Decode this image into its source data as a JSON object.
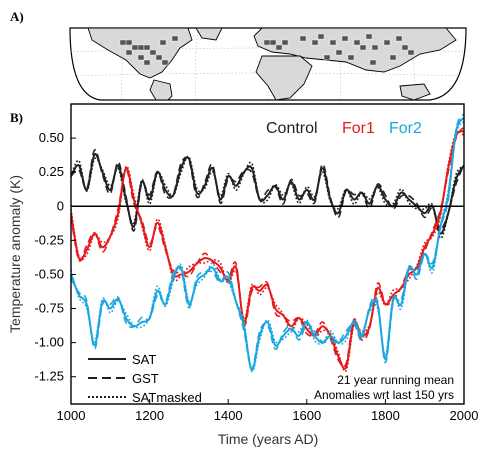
{
  "panel_a_label": "A)",
  "panel_b_label": "B)",
  "colors": {
    "control": "#222222",
    "for1": "#e41a1c",
    "for2": "#1aa7e0",
    "land": "#d9d9d9",
    "grid_cells": "#555555"
  },
  "legend_runs": [
    {
      "name": "Control",
      "color": "#222222"
    },
    {
      "name": "For1",
      "color": "#e41a1c"
    },
    {
      "name": "For2",
      "color": "#1aa7e0"
    }
  ],
  "legend_styles": [
    {
      "name": "SAT",
      "dash": "solid"
    },
    {
      "name": "GST",
      "dash": "dashed"
    },
    {
      "name": "SATmasked",
      "dash": "dotted"
    }
  ],
  "notes": [
    "21  year  running mean",
    "Anomalies wrt last 150 yrs"
  ],
  "chart_data": {
    "type": "line",
    "xlabel": "Time (years AD)",
    "ylabel": "Temperature anomaly (K)",
    "xlim": [
      1000,
      2000
    ],
    "ylim": [
      -1.45,
      0.75
    ],
    "xticks": [
      1000,
      1200,
      1400,
      1600,
      1800,
      2000
    ],
    "yticks": [
      0.5,
      0.25,
      0,
      -0.25,
      -0.5,
      -0.75,
      -1.0,
      -1.25
    ],
    "ytick_labels": [
      "0.50",
      "0.25",
      "0",
      "-0.25",
      "-0.50",
      "-0.75",
      "-1.00",
      "-1.25"
    ],
    "zero_line": 0,
    "grid": false,
    "series": [
      {
        "name": "Control",
        "color": "#222222",
        "x": [
          1000,
          1020,
          1040,
          1060,
          1080,
          1100,
          1120,
          1140,
          1160,
          1180,
          1200,
          1220,
          1240,
          1260,
          1280,
          1300,
          1320,
          1340,
          1360,
          1380,
          1400,
          1420,
          1440,
          1460,
          1480,
          1500,
          1520,
          1540,
          1560,
          1580,
          1600,
          1620,
          1640,
          1660,
          1680,
          1700,
          1720,
          1740,
          1760,
          1780,
          1800,
          1820,
          1840,
          1860,
          1880,
          1900,
          1920,
          1940,
          1960,
          1980,
          2000
        ],
        "y": [
          0.22,
          0.3,
          0.12,
          0.38,
          0.25,
          0.12,
          0.3,
          0.05,
          -0.15,
          0.18,
          0.05,
          0.25,
          0.12,
          0.08,
          0.28,
          0.35,
          0.1,
          0.15,
          0.28,
          0.05,
          0.22,
          0.15,
          0.25,
          0.28,
          0.05,
          0.08,
          0.15,
          0.05,
          0.18,
          0.05,
          0.12,
          0.05,
          0.28,
          0.05,
          -0.05,
          0.12,
          0.05,
          0.1,
          0.02,
          0.15,
          0.05,
          0.0,
          0.1,
          0.05,
          0.0,
          -0.05,
          0.0,
          -0.2,
          -0.05,
          0.2,
          0.3
        ]
      },
      {
        "name": "For1",
        "color": "#e41a1c",
        "x": [
          1000,
          1020,
          1040,
          1060,
          1080,
          1100,
          1120,
          1140,
          1160,
          1180,
          1200,
          1220,
          1240,
          1260,
          1280,
          1300,
          1320,
          1340,
          1360,
          1380,
          1400,
          1420,
          1440,
          1460,
          1480,
          1500,
          1520,
          1540,
          1560,
          1580,
          1600,
          1620,
          1640,
          1660,
          1680,
          1700,
          1720,
          1740,
          1760,
          1780,
          1800,
          1820,
          1840,
          1860,
          1880,
          1900,
          1920,
          1940,
          1960,
          1980,
          2000
        ],
        "y": [
          -0.05,
          -0.38,
          -0.32,
          -0.2,
          -0.3,
          -0.22,
          -0.05,
          0.28,
          0.05,
          -0.12,
          -0.3,
          -0.12,
          -0.3,
          -0.5,
          -0.5,
          -0.48,
          -0.42,
          -0.38,
          -0.4,
          -0.45,
          -0.55,
          -0.45,
          -0.85,
          -0.6,
          -0.62,
          -0.58,
          -0.75,
          -0.8,
          -0.88,
          -0.82,
          -0.9,
          -0.95,
          -0.88,
          -0.95,
          -1.1,
          -1.18,
          -0.85,
          -0.95,
          -0.88,
          -0.6,
          -0.72,
          -0.65,
          -0.6,
          -0.5,
          -0.45,
          -0.3,
          -0.2,
          -0.05,
          0.28,
          0.52,
          0.55
        ]
      },
      {
        "name": "For2",
        "color": "#1aa7e0",
        "x": [
          1000,
          1020,
          1040,
          1060,
          1080,
          1100,
          1120,
          1140,
          1160,
          1180,
          1200,
          1220,
          1240,
          1260,
          1280,
          1300,
          1320,
          1340,
          1360,
          1380,
          1400,
          1420,
          1440,
          1460,
          1480,
          1500,
          1520,
          1540,
          1560,
          1580,
          1600,
          1620,
          1640,
          1660,
          1680,
          1700,
          1720,
          1740,
          1760,
          1780,
          1800,
          1820,
          1840,
          1860,
          1880,
          1900,
          1920,
          1940,
          1960,
          1980,
          2000
        ],
        "y": [
          -0.5,
          -0.65,
          -0.72,
          -1.02,
          -0.7,
          -0.75,
          -0.68,
          -0.82,
          -0.88,
          -0.85,
          -0.82,
          -0.62,
          -0.72,
          -0.52,
          -0.45,
          -0.72,
          -0.55,
          -0.5,
          -0.45,
          -0.55,
          -0.52,
          -0.7,
          -0.88,
          -1.2,
          -0.95,
          -0.85,
          -1.02,
          -0.95,
          -0.9,
          -0.95,
          -0.85,
          -0.95,
          -1.0,
          -0.95,
          -1.0,
          -0.95,
          -0.85,
          -0.95,
          -0.75,
          -0.72,
          -1.12,
          -0.68,
          -0.72,
          -0.45,
          -0.5,
          -0.35,
          -0.45,
          -0.15,
          0.08,
          0.55,
          0.65
        ]
      }
    ]
  }
}
